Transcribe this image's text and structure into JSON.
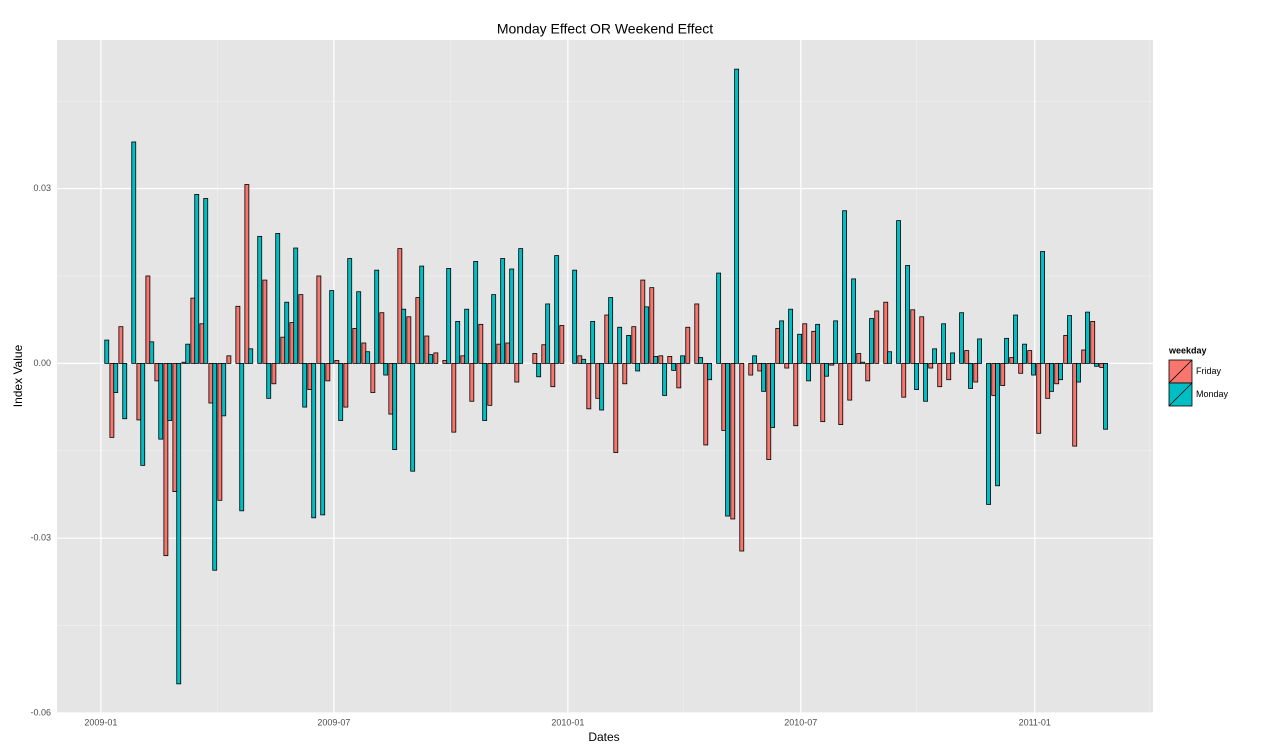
{
  "chart_data": {
    "type": "bar",
    "title": "Monday Effect OR Weekend Effect",
    "x_label": "Dates",
    "y_label": "Index Value",
    "categories": [
      null,
      null,
      null,
      null,
      null,
      null,
      null,
      null,
      null,
      null,
      null,
      null,
      null,
      null,
      null,
      null,
      null,
      null,
      null,
      null,
      null,
      null,
      null,
      null,
      null,
      null,
      null,
      null,
      null,
      null,
      null,
      null,
      null,
      null,
      null,
      null,
      null,
      null,
      null,
      null,
      null,
      null,
      null,
      null,
      null,
      null,
      null,
      null,
      null,
      null,
      null,
      null,
      null,
      null,
      null,
      null,
      null,
      null,
      null,
      null,
      null,
      null,
      null,
      null,
      null,
      null,
      null,
      null,
      null,
      null,
      null,
      null,
      null,
      null,
      null,
      null,
      null,
      null,
      null,
      null,
      null,
      null,
      null,
      null,
      null,
      null,
      null,
      null,
      null,
      null,
      null,
      null,
      null,
      null,
      null,
      null,
      null,
      null,
      null,
      null,
      null,
      null,
      null,
      null,
      null,
      null,
      null,
      null,
      null,
      null,
      null,
      null
    ],
    "series": [
      {
        "name": "Friday",
        "color": "#F8766D",
        "values": [
          0,
          -0.0127,
          0.0063,
          0,
          -0.0097,
          0.015,
          -0.003,
          -0.033,
          -0.022,
          0.0002,
          0.0112,
          0.0068,
          -0.0068,
          -0.0235,
          0.0013,
          0.0098,
          0.0307,
          0,
          0.0143,
          -0.0035,
          0.0045,
          0.007,
          0.0118,
          -0.0045,
          0.015,
          -0.003,
          0.0005,
          -0.0075,
          0.006,
          0.0035,
          -0.005,
          0.0087,
          -0.0087,
          0.0197,
          0.008,
          0.0113,
          0.0047,
          0.0018,
          0.0005,
          -0.0118,
          0.0013,
          -0.0065,
          0.0067,
          -0.0072,
          0.0033,
          0.0035,
          -0.0032,
          0,
          0.0017,
          0.0032,
          -0.004,
          0.0065,
          0,
          0.0013,
          -0.0078,
          -0.006,
          0.0083,
          -0.0153,
          -0.0035,
          0.0063,
          0.0143,
          0.013,
          0.0013,
          0.0012,
          -0.0042,
          0.0062,
          0.0102,
          -0.014,
          0,
          -0.0115,
          -0.0267,
          -0.0322,
          -0.002,
          -0.0013,
          -0.0165,
          0.006,
          -0.0008,
          -0.0107,
          0.0068,
          0.0055,
          -0.01,
          -0.0003,
          -0.0105,
          -0.0063,
          0.0017,
          -0.003,
          0.009,
          0.0105,
          0,
          -0.0058,
          0.0092,
          0.008,
          -0.0008,
          -0.004,
          -0.0028,
          0,
          0.0022,
          -0.0032,
          0,
          -0.0055,
          -0.0038,
          0.001,
          -0.0017,
          0.0022,
          -0.012,
          -0.006,
          -0.0035,
          0.0048,
          -0.0142,
          0.0023,
          0.0072,
          -0.0007
        ]
      },
      {
        "name": "Monday",
        "color": "#00BFC4",
        "values": [
          0.004,
          -0.005,
          -0.0095,
          0.038,
          -0.0175,
          0.0037,
          -0.013,
          -0.0098,
          -0.055,
          0.0033,
          0.029,
          0.0283,
          -0.0355,
          -0.009,
          0,
          -0.0253,
          0.0025,
          0.0218,
          -0.006,
          0.0223,
          0.0105,
          0.0198,
          -0.0075,
          -0.0265,
          -0.026,
          0.0125,
          -0.0098,
          0.018,
          0.0123,
          0.002,
          0.016,
          -0.002,
          -0.0148,
          0.0093,
          -0.0185,
          0.0167,
          0.0015,
          0,
          0.0163,
          0.0072,
          0.0093,
          0.0175,
          -0.0098,
          0.0118,
          0.018,
          0.0162,
          0.0197,
          0,
          -0.0023,
          0.0102,
          0.0185,
          0,
          0.016,
          0.0007,
          0.0072,
          -0.008,
          0.0113,
          0.0062,
          0.0048,
          -0.0013,
          0.0097,
          0.0012,
          -0.0055,
          -0.0012,
          0.0013,
          0,
          0.001,
          -0.0028,
          0.0155,
          -0.0262,
          0.0505,
          0,
          0.0013,
          -0.0048,
          -0.011,
          0.0073,
          0.0093,
          0.005,
          -0.003,
          0.0067,
          -0.0022,
          0.0073,
          0.0262,
          0.0145,
          0.0002,
          0.0077,
          0,
          0.002,
          0.0245,
          0.0168,
          -0.0045,
          -0.0065,
          0.0025,
          0.0068,
          0.0018,
          0.0087,
          -0.0043,
          0.0042,
          -0.0242,
          -0.021,
          0.0043,
          0.0083,
          0.0033,
          -0.002,
          0.0192,
          -0.0048,
          -0.0028,
          0.0082,
          -0.0032,
          0.0088,
          -0.0005,
          -0.0113
        ]
      }
    ],
    "legend_title": "weekday",
    "legend": "right",
    "xlim": [
      -5.1,
      116.7
    ],
    "xticks": [
      {
        "value": -0.22,
        "label": "2009-01"
      },
      {
        "value": 25.67,
        "label": "2009-07"
      },
      {
        "value": 51.67,
        "label": "2010-01"
      },
      {
        "value": 77.56,
        "label": "2010-07"
      },
      {
        "value": 103.56,
        "label": "2011-01"
      }
    ],
    "ylim": [
      -0.06,
      0.0555
    ],
    "yticks": [
      -0.06,
      -0.03,
      {
        "value": 0,
        "label": "0.00"
      },
      0.03
    ],
    "grid": true
  }
}
